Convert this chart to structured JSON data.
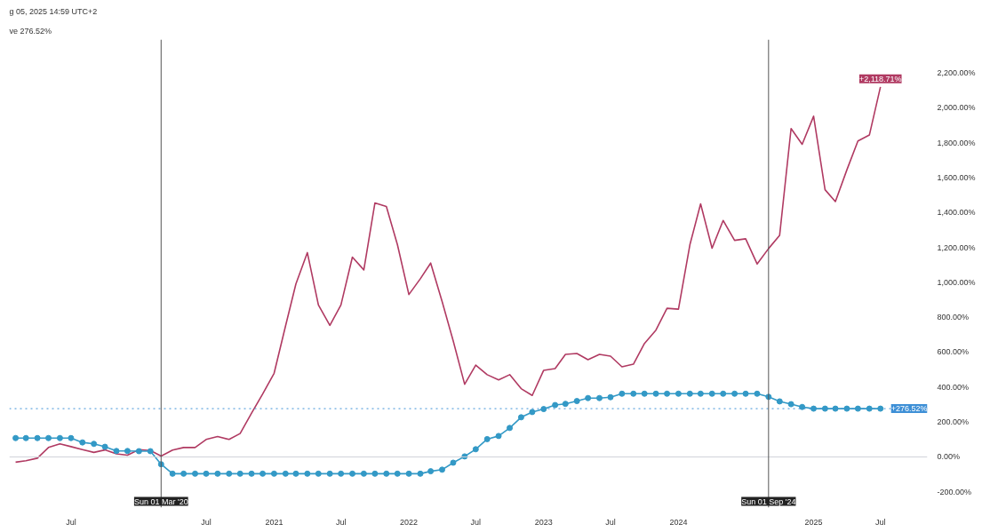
{
  "chart_data": {
    "type": "line",
    "annotations": [
      "g 05, 2025 14:59 UTC+2",
      "ve 276.52%",
      {
        "text": "+2,118.71%",
        "x": "2025-07",
        "y": 2118.71
      }
    ],
    "x": [
      "2019-02",
      "2019-03",
      "2019-04",
      "2019-05",
      "2019-06",
      "2019-07",
      "2019-08",
      "2019-09",
      "2019-10",
      "2019-11",
      "2019-12",
      "2020-01",
      "2020-02",
      "2020-03",
      "2020-04",
      "2020-05",
      "2020-06",
      "2020-07",
      "2020-08",
      "2020-09",
      "2020-10",
      "2020-11",
      "2020-12",
      "2021-01",
      "2021-02",
      "2021-03",
      "2021-04",
      "2021-05",
      "2021-06",
      "2021-07",
      "2021-08",
      "2021-09",
      "2021-10",
      "2021-11",
      "2021-12",
      "2022-01",
      "2022-02",
      "2022-03",
      "2022-04",
      "2022-05",
      "2022-06",
      "2022-07",
      "2022-08",
      "2022-09",
      "2022-10",
      "2022-11",
      "2022-12",
      "2023-01",
      "2023-02",
      "2023-03",
      "2023-04",
      "2023-05",
      "2023-06",
      "2023-07",
      "2023-08",
      "2023-09",
      "2023-10",
      "2023-11",
      "2023-12",
      "2024-01",
      "2024-02",
      "2024-03",
      "2024-04",
      "2024-05",
      "2024-06",
      "2024-07",
      "2024-08",
      "2024-09",
      "2024-10",
      "2024-11",
      "2024-12",
      "2025-01",
      "2025-02",
      "2025-03",
      "2025-04",
      "2025-05",
      "2025-06",
      "2025-07"
    ],
    "series": [
      {
        "color": "#b03a62",
        "marker": "none",
        "values": [
          -30,
          -22,
          -7,
          54,
          75,
          59,
          42,
          26,
          40,
          18,
          10,
          42,
          37,
          5,
          39,
          54,
          54,
          100,
          117,
          100,
          134,
          251,
          360,
          479,
          750,
          990,
          1170,
          870,
          753,
          870,
          1144,
          1071,
          1454,
          1434,
          1215,
          930,
          1020,
          1110,
          890,
          665,
          416,
          526,
          471,
          441,
          471,
          391,
          352,
          496,
          506,
          587,
          592,
          557,
          587,
          577,
          516,
          531,
          650,
          726,
          851,
          846,
          1215,
          1449,
          1195,
          1354,
          1240,
          1249,
          1105,
          1193,
          1269,
          1880,
          1790,
          1951,
          1530,
          1462,
          1643,
          1809,
          1843,
          2118.71
        ]
      },
      {
        "color": "#3399c6",
        "marker": "circle",
        "values": [
          108,
          108,
          108,
          108,
          108,
          108,
          83,
          75,
          58,
          34,
          34,
          33,
          33,
          -42,
          -96,
          -96,
          -96,
          -96,
          -96,
          -96,
          -96,
          -96,
          -96,
          -96,
          -96,
          -96,
          -96,
          -96,
          -96,
          -96,
          -96,
          -96,
          -96,
          -96,
          -96,
          -96,
          -96,
          -82,
          -73,
          -33,
          3,
          44,
          102,
          120,
          166,
          227,
          257,
          274,
          297,
          304,
          320,
          337,
          337,
          342,
          362,
          362,
          362,
          362,
          362,
          362,
          362,
          362,
          362,
          362,
          362,
          362,
          362,
          344,
          318,
          302,
          286,
          276.52,
          276.52,
          276.52,
          276.52,
          276.52,
          276.52,
          276.52
        ]
      }
    ],
    "ref_lines": [
      {
        "axis": "y",
        "value": 0,
        "label": null,
        "color": "#d0d3da",
        "line_style": "solid"
      },
      {
        "axis": "y",
        "value": 276.52,
        "label": "+276.52%",
        "color": "#3d8fd6",
        "line_style": "dotted"
      },
      {
        "axis": "x",
        "value": "2020-03-01",
        "label": "Sun 01 Mar '20",
        "color": "#555555",
        "line_style": "solid"
      },
      {
        "axis": "x",
        "value": "2024-09-01",
        "label": "Sun 01 Sep '24",
        "color": "#555555",
        "line_style": "solid"
      }
    ],
    "xlim": [
      "2019-01-15",
      "2025-11-05"
    ],
    "xticks": [
      {
        "value": "2019-07",
        "label": "Jul"
      },
      {
        "value": "2020-07",
        "label": "Jul"
      },
      {
        "value": "2021",
        "label": "2021"
      },
      {
        "value": "2021-07",
        "label": "Jul"
      },
      {
        "value": "2022",
        "label": "2022"
      },
      {
        "value": "2022-07",
        "label": "Jul"
      },
      {
        "value": "2023",
        "label": "2023"
      },
      {
        "value": "2023-07",
        "label": "Jul"
      },
      {
        "value": "2024",
        "label": "2024"
      },
      {
        "value": "2025",
        "label": "2025"
      },
      {
        "value": "2025-07",
        "label": "Jul"
      }
    ],
    "ylim": [
      -290,
      2390
    ],
    "yticks": [
      {
        "value": -200,
        "label": "-200.00%"
      },
      {
        "value": 0,
        "label": "0.00%"
      },
      {
        "value": 200,
        "label": "200.00%"
      },
      {
        "value": 400,
        "label": "400.00%"
      },
      {
        "value": 600,
        "label": "600.00%"
      },
      {
        "value": 800,
        "label": "800.00%"
      },
      {
        "value": 1000,
        "label": "1,000.00%"
      },
      {
        "value": 1200,
        "label": "1,200.00%"
      },
      {
        "value": 1400,
        "label": "1,400.00%"
      },
      {
        "value": 1600,
        "label": "1,600.00%"
      },
      {
        "value": 1800,
        "label": "1,800.00%"
      },
      {
        "value": 2000,
        "label": "2,000.00%"
      },
      {
        "value": 2200,
        "label": "2,200.00%"
      }
    ],
    "grid": false,
    "line_style": "solid"
  }
}
